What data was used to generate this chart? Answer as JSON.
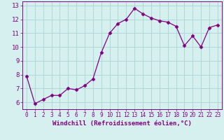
{
  "x": [
    0,
    1,
    2,
    3,
    4,
    5,
    6,
    7,
    8,
    9,
    10,
    11,
    12,
    13,
    14,
    15,
    16,
    17,
    18,
    19,
    20,
    21,
    22,
    23
  ],
  "y": [
    7.9,
    5.9,
    6.2,
    6.5,
    6.5,
    7.0,
    6.9,
    7.2,
    7.7,
    9.6,
    11.0,
    11.7,
    12.0,
    12.8,
    12.4,
    12.1,
    11.9,
    11.8,
    11.5,
    10.1,
    10.8,
    10.0,
    11.4,
    11.6
  ],
  "line_color": "#800080",
  "marker": "D",
  "marker_size": 2.5,
  "bg_color": "#d6f0f0",
  "grid_color": "#b0d8d8",
  "xlabel": "Windchill (Refroidissement éolien,°C)",
  "ylabel_ticks": [
    6,
    7,
    8,
    9,
    10,
    11,
    12,
    13
  ],
  "xlim": [
    -0.5,
    23.5
  ],
  "ylim": [
    5.5,
    13.3
  ],
  "xticks": [
    0,
    1,
    2,
    3,
    4,
    5,
    6,
    7,
    8,
    9,
    10,
    11,
    12,
    13,
    14,
    15,
    16,
    17,
    18,
    19,
    20,
    21,
    22,
    23
  ],
  "title_color": "#800080",
  "font_size_xlabel": 6.5,
  "font_size_ytick": 6.5,
  "font_size_xtick": 5.5
}
